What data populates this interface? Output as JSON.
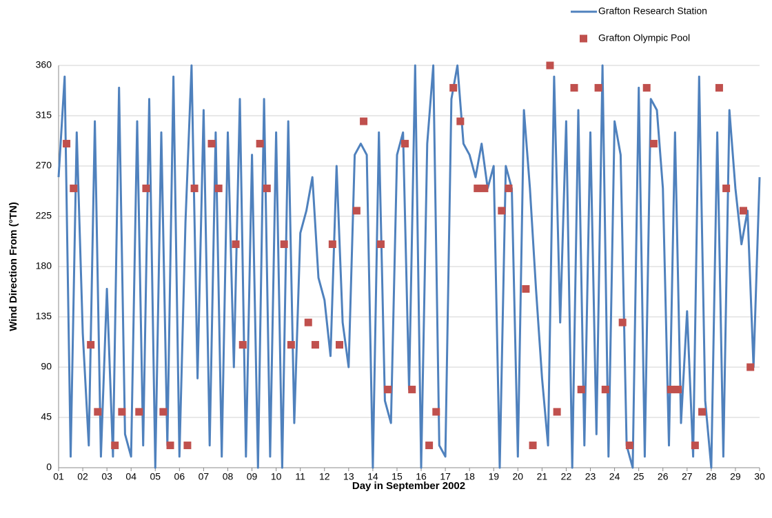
{
  "chart_data": {
    "type": "line",
    "xlabel": "Day in September 2002",
    "ylabel": "Wind Direction From (°TN)",
    "xlim": [
      1,
      30
    ],
    "xticks": [
      {
        "value": 1,
        "label": "01"
      },
      {
        "value": 2,
        "label": "02"
      },
      {
        "value": 3,
        "label": "03"
      },
      {
        "value": 4,
        "label": "04"
      },
      {
        "value": 5,
        "label": "05"
      },
      {
        "value": 6,
        "label": "06"
      },
      {
        "value": 7,
        "label": "07"
      },
      {
        "value": 8,
        "label": "08"
      },
      {
        "value": 9,
        "label": "09"
      },
      10,
      11,
      12,
      13,
      14,
      15,
      16,
      17,
      18,
      19,
      20,
      21,
      22,
      23,
      24,
      25,
      26,
      27,
      28,
      29,
      30
    ],
    "ylim": [
      0,
      360
    ],
    "yticks": [
      0,
      45,
      90,
      135,
      180,
      225,
      270,
      315,
      360
    ],
    "grid": true,
    "legend": "top-right",
    "series": [
      {
        "name": "Grafton Research Station",
        "type": "line",
        "color": "#4f81bd",
        "x": [
          1,
          1.25,
          1.5,
          1.75,
          2,
          2.25,
          2.5,
          2.75,
          3,
          3.25,
          3.5,
          3.75,
          4,
          4.25,
          4.5,
          4.75,
          5,
          5.25,
          5.5,
          5.75,
          6,
          6.25,
          6.5,
          6.75,
          7,
          7.25,
          7.5,
          7.75,
          8,
          8.25,
          8.5,
          8.75,
          9,
          9.25,
          9.5,
          9.75,
          10,
          10.25,
          10.5,
          10.75,
          11,
          11.25,
          11.5,
          11.75,
          12,
          12.25,
          12.5,
          12.75,
          13,
          13.25,
          13.5,
          13.75,
          14,
          14.25,
          14.5,
          14.75,
          15,
          15.25,
          15.5,
          15.75,
          16,
          16.25,
          16.5,
          16.75,
          17,
          17.25,
          17.5,
          17.75,
          18,
          18.25,
          18.5,
          18.75,
          19,
          19.25,
          19.5,
          19.75,
          20,
          20.25,
          20.5,
          20.75,
          21,
          21.25,
          21.5,
          21.75,
          22,
          22.25,
          22.5,
          22.75,
          23,
          23.25,
          23.5,
          23.75,
          24,
          24.25,
          24.5,
          24.75,
          25,
          25.25,
          25.5,
          25.75,
          26,
          26.25,
          26.5,
          26.75,
          27,
          27.25,
          27.5,
          27.75,
          28,
          28.25,
          28.5,
          28.75,
          29,
          29.25,
          29.5,
          29.75,
          30
        ],
        "values": [
          260,
          350,
          10,
          300,
          120,
          20,
          310,
          10,
          160,
          10,
          340,
          30,
          10,
          310,
          20,
          330,
          0,
          300,
          20,
          350,
          10,
          220,
          360,
          80,
          320,
          20,
          300,
          10,
          300,
          90,
          330,
          10,
          280,
          0,
          330,
          10,
          300,
          0,
          310,
          40,
          210,
          230,
          260,
          170,
          150,
          100,
          270,
          130,
          90,
          280,
          290,
          280,
          0,
          300,
          60,
          40,
          280,
          300,
          70,
          360,
          0,
          290,
          360,
          20,
          10,
          330,
          360,
          290,
          280,
          260,
          290,
          250,
          270,
          0,
          270,
          250,
          10,
          320,
          250,
          160,
          80,
          20,
          350,
          130,
          310,
          0,
          320,
          20,
          300,
          30,
          360,
          10,
          310,
          280,
          20,
          0,
          340,
          10,
          330,
          320,
          250,
          20,
          300,
          40,
          140,
          10,
          350,
          60,
          0,
          300,
          10,
          320,
          250,
          200,
          230,
          90,
          260
        ]
      },
      {
        "name": "Grafton Olympic Pool",
        "type": "scatter",
        "color": "#c0504d",
        "x": [
          1.33,
          1.62,
          2.33,
          2.62,
          3.33,
          3.62,
          4.33,
          4.62,
          5.33,
          5.62,
          6.33,
          6.62,
          7.33,
          7.62,
          8.33,
          8.62,
          9.33,
          9.62,
          10.33,
          10.62,
          11.33,
          11.62,
          12.33,
          12.62,
          13.33,
          13.62,
          14.33,
          14.62,
          15.33,
          15.62,
          16.33,
          16.62,
          17.33,
          17.62,
          18.33,
          18.62,
          19.33,
          19.62,
          20.33,
          20.62,
          21.33,
          21.62,
          22.33,
          22.62,
          23.33,
          23.62,
          24.33,
          24.62,
          25.33,
          25.62,
          26.33,
          26.62,
          27.33,
          27.62,
          28.33,
          28.62,
          29.33,
          29.62
        ],
        "values": [
          290,
          250,
          110,
          50,
          20,
          50,
          50,
          250,
          50,
          20,
          20,
          250,
          290,
          250,
          200,
          110,
          290,
          250,
          200,
          110,
          130,
          110,
          200,
          110,
          230,
          310,
          200,
          70,
          290,
          70,
          20,
          50,
          340,
          310,
          250,
          250,
          230,
          250,
          160,
          20,
          360,
          50,
          340,
          70,
          340,
          70,
          130,
          20,
          340,
          290,
          70,
          70,
          20,
          50,
          340,
          250,
          230,
          90
        ]
      }
    ]
  }
}
